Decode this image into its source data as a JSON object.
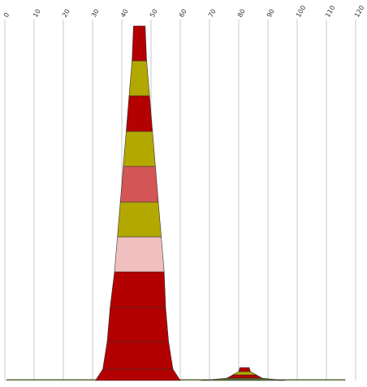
{
  "chart_data": {
    "type": "area",
    "title": "",
    "xlabel": "",
    "ylabel": "",
    "x_ticks": [
      "0",
      "10",
      "20",
      "30",
      "40",
      "50",
      "60",
      "70",
      "80",
      "90",
      "100",
      "110",
      "120"
    ],
    "xlim": [
      0,
      120
    ],
    "grid": true,
    "legend": "none",
    "stacks": [
      {
        "bands": [
          {
            "x0": 31,
            "x1": 60,
            "color": "#b30000"
          },
          {
            "x0": 33.5,
            "x1": 57.5,
            "color": "#b30000"
          },
          {
            "x0": 35,
            "x1": 56,
            "color": "#b30000"
          },
          {
            "x0": 36,
            "x1": 55,
            "color": "#b30000"
          },
          {
            "x0": 37.5,
            "x1": 54.5,
            "color": "#f0c0c0"
          },
          {
            "x0": 38.5,
            "x1": 53.5,
            "color": "#b3a800"
          },
          {
            "x0": 39.5,
            "x1": 52.5,
            "color": "#d45555"
          },
          {
            "x0": 40.5,
            "x1": 51.5,
            "color": "#b3a800"
          },
          {
            "x0": 41.5,
            "x1": 50.5,
            "color": "#b30000"
          },
          {
            "x0": 42.5,
            "x1": 49.5,
            "color": "#b3a800"
          },
          {
            "x0": 43.5,
            "x1": 48.5,
            "color": "#b30000"
          }
        ]
      },
      {
        "bands": [
          {
            "x0": 67,
            "x1": 96,
            "color": "#556b2f"
          },
          {
            "x0": 76,
            "x1": 88,
            "color": "#b30000"
          },
          {
            "x0": 78,
            "x1": 86,
            "color": "#b3a800"
          },
          {
            "x0": 80,
            "x1": 84,
            "color": "#b30000"
          }
        ]
      }
    ],
    "baseline": {
      "x0": 0.5,
      "x1": 116.5,
      "color": "#556b2f"
    }
  }
}
